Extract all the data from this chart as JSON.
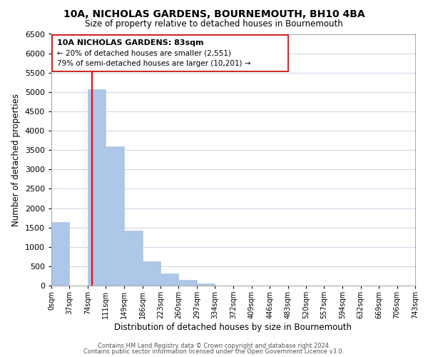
{
  "title": "10A, NICHOLAS GARDENS, BOURNEMOUTH, BH10 4BA",
  "subtitle": "Size of property relative to detached houses in Bournemouth",
  "xlabel": "Distribution of detached houses by size in Bournemouth",
  "ylabel": "Number of detached properties",
  "bin_edges": [
    0,
    37,
    74,
    111,
    149,
    186,
    223,
    260,
    297,
    334,
    372,
    409,
    446,
    483,
    520,
    557,
    594,
    632,
    669,
    706,
    743
  ],
  "bar_heights": [
    1650,
    0,
    5080,
    3600,
    1420,
    620,
    305,
    155,
    60,
    0,
    0,
    0,
    0,
    0,
    0,
    0,
    0,
    0,
    0,
    0
  ],
  "bar_color": "#aec6e8",
  "bar_edge_color": "#aec6e8",
  "vline_x": 83,
  "vline_color": "red",
  "ylim": [
    0,
    6500
  ],
  "xlim": [
    0,
    743
  ],
  "annotation_line1": "10A NICHOLAS GARDENS: 83sqm",
  "annotation_line2": "← 20% of detached houses are smaller (2,551)",
  "annotation_line3": "79% of semi-detached houses are larger (10,201) →",
  "tick_labels": [
    "0sqm",
    "37sqm",
    "74sqm",
    "111sqm",
    "149sqm",
    "186sqm",
    "223sqm",
    "260sqm",
    "297sqm",
    "334sqm",
    "372sqm",
    "409sqm",
    "446sqm",
    "483sqm",
    "520sqm",
    "557sqm",
    "594sqm",
    "632sqm",
    "669sqm",
    "706sqm",
    "743sqm"
  ],
  "footer_line1": "Contains HM Land Registry data © Crown copyright and database right 2024.",
  "footer_line2": "Contains public sector information licensed under the Open Government Licence v3.0.",
  "bg_color": "#ffffff",
  "grid_color": "#d0d8e8",
  "yticks": [
    0,
    500,
    1000,
    1500,
    2000,
    2500,
    3000,
    3500,
    4000,
    4500,
    5000,
    5500,
    6000,
    6500
  ]
}
